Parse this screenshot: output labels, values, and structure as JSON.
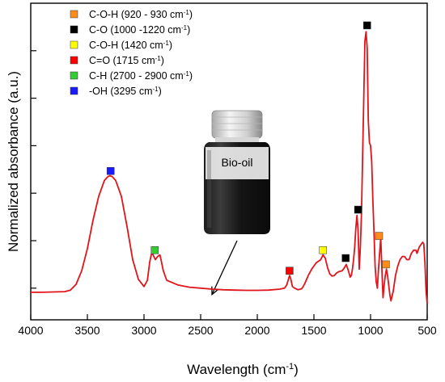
{
  "chart_data": {
    "type": "line",
    "xlabel": "Wavelength (cm",
    "xlabel_sup": "-1",
    "xlabel_close": ")",
    "ylabel": "Normalized absorbance (a.u.)",
    "xlim": [
      4000,
      500
    ],
    "ylim": [
      0,
      1
    ],
    "x_axis_reversed": true,
    "y_tick_labels_shown": false,
    "x_ticks": [
      4000,
      3500,
      3000,
      2500,
      2000,
      1500,
      1000,
      500
    ],
    "x_tick_labels": [
      "4000",
      "3500",
      "3000",
      "2500",
      "2000",
      "1500",
      "1000",
      "500"
    ],
    "y_ticks": [
      0.1,
      0.25,
      0.4,
      0.55,
      0.7,
      0.85
    ],
    "grid": false,
    "legend_position": "top-left",
    "line_color": "#e0141a",
    "series": [
      {
        "x": [
          4000,
          3900,
          3800,
          3700,
          3650,
          3600,
          3550,
          3500,
          3450,
          3400,
          3350,
          3320,
          3300,
          3280,
          3250,
          3200,
          3150,
          3100,
          3050,
          3000,
          2970,
          2950,
          2930,
          2920,
          2900,
          2880,
          2860,
          2850,
          2830,
          2800,
          2700,
          2600,
          2500,
          2400,
          2300,
          2200,
          2100,
          2000,
          1900,
          1800,
          1760,
          1740,
          1725,
          1715,
          1705,
          1690,
          1670,
          1640,
          1610,
          1600,
          1580,
          1550,
          1520,
          1500,
          1480,
          1460,
          1440,
          1420,
          1400,
          1380,
          1360,
          1340,
          1320,
          1300,
          1280,
          1250,
          1230,
          1215,
          1200,
          1190,
          1180,
          1170,
          1160,
          1150,
          1140,
          1130,
          1120,
          1110,
          1100,
          1090,
          1080,
          1070,
          1060,
          1050,
          1040,
          1030,
          1020,
          1010,
          1000,
          990,
          980,
          970,
          960,
          950,
          940,
          930,
          920,
          910,
          900,
          890,
          880,
          870,
          860,
          850,
          840,
          830,
          820,
          800,
          780,
          760,
          740,
          720,
          700,
          680,
          660,
          650,
          640,
          620,
          600,
          590,
          580,
          570,
          560,
          550,
          540,
          530,
          520,
          510,
          500
        ],
        "y": [
          0.087,
          0.087,
          0.088,
          0.089,
          0.094,
          0.112,
          0.155,
          0.225,
          0.315,
          0.39,
          0.44,
          0.452,
          0.455,
          0.452,
          0.44,
          0.39,
          0.295,
          0.19,
          0.128,
          0.105,
          0.125,
          0.182,
          0.215,
          0.205,
          0.19,
          0.2,
          0.205,
          0.19,
          0.155,
          0.125,
          0.11,
          0.103,
          0.1,
          0.097,
          0.095,
          0.094,
          0.093,
          0.093,
          0.094,
          0.097,
          0.1,
          0.11,
          0.128,
          0.14,
          0.13,
          0.105,
          0.1,
          0.095,
          0.098,
          0.102,
          0.115,
          0.14,
          0.16,
          0.17,
          0.18,
          0.185,
          0.19,
          0.205,
          0.195,
          0.165,
          0.145,
          0.138,
          0.14,
          0.148,
          0.152,
          0.155,
          0.165,
          0.175,
          0.16,
          0.148,
          0.135,
          0.14,
          0.16,
          0.19,
          0.23,
          0.29,
          0.33,
          0.28,
          0.16,
          0.23,
          0.34,
          0.52,
          0.7,
          0.88,
          0.91,
          0.86,
          0.63,
          0.56,
          0.55,
          0.5,
          0.38,
          0.28,
          0.17,
          0.12,
          0.1,
          0.16,
          0.21,
          0.26,
          0.16,
          0.07,
          0.11,
          0.14,
          0.16,
          0.14,
          0.11,
          0.08,
          0.06,
          0.09,
          0.14,
          0.17,
          0.19,
          0.2,
          0.2,
          0.19,
          0.19,
          0.2,
          0.21,
          0.22,
          0.22,
          0.21,
          0.22,
          0.23,
          0.235,
          0.24,
          0.245,
          0.24,
          0.18,
          0.09,
          0.05
        ]
      }
    ],
    "markers": [
      {
        "x": 3295,
        "y": 0.47,
        "color": "#1a1aff"
      },
      {
        "x": 2905,
        "y": 0.22,
        "color": "#33cc33"
      },
      {
        "x": 1715,
        "y": 0.155,
        "color": "#ff0000"
      },
      {
        "x": 1420,
        "y": 0.22,
        "color": "#ffff00"
      },
      {
        "x": 1220,
        "y": 0.195,
        "color": "#000000"
      },
      {
        "x": 1110,
        "y": 0.348,
        "color": "#000000"
      },
      {
        "x": 1030,
        "y": 0.93,
        "color": "#000000"
      },
      {
        "x": 925,
        "y": 0.265,
        "color": "#ff8c1a"
      },
      {
        "x": 865,
        "y": 0.175,
        "color": "#ff8c1a"
      }
    ],
    "legend": [
      {
        "label": "C-O-H (920 - 930 cm",
        "sup": "-1",
        "tail": ")",
        "color": "#ff8c1a"
      },
      {
        "label": "C-O (1000 -1220 cm",
        "sup": "-1",
        "tail": ")",
        "color": "#000000"
      },
      {
        "label": "C-O-H (1420 cm",
        "sup": "-1",
        "tail": ")",
        "color": "#ffff00"
      },
      {
        "label": "C=O (1715 cm",
        "sup": "-1",
        "tail": ")",
        "color": "#ff0000"
      },
      {
        "label": "C-H (2700 - 2900 cm",
        "sup": "-1",
        "tail": ")",
        "color": "#33cc33"
      },
      {
        "label": "-OH (3295 cm",
        "sup": "-1",
        "tail": ")",
        "color": "#1a1aff"
      }
    ],
    "inset": {
      "label": "Bio-oil",
      "arrow_target_x": 2400
    }
  }
}
